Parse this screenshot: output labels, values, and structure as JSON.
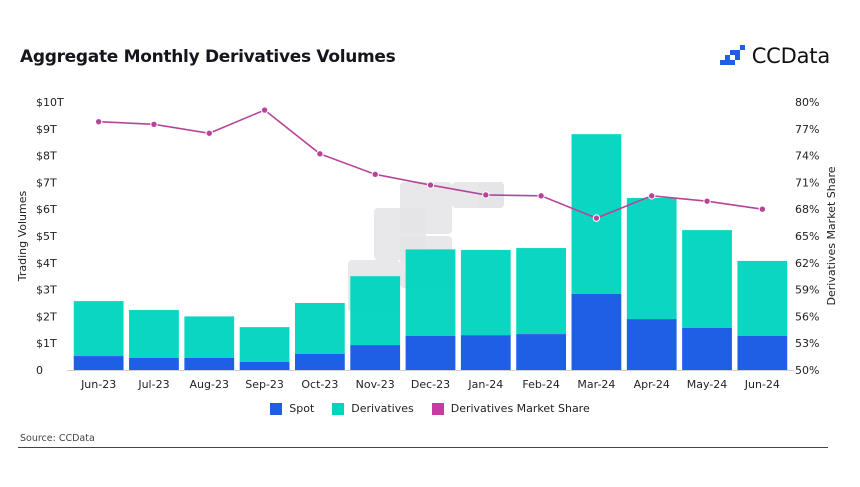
{
  "header": {
    "title": "Aggregate Monthly Derivatives Volumes",
    "brand": "CCData"
  },
  "footer": {
    "source": "Source: CCData"
  },
  "colors": {
    "spot": "#1f5fe6",
    "derivatives": "#00d4be",
    "market_share": "#b8449a",
    "watermark": "#e4e4e8"
  },
  "chart_data": {
    "type": "bar",
    "stacked": true,
    "title": "Aggregate Monthly Derivatives Volumes",
    "xlabel": "",
    "ylabel": "Trading Volumes",
    "y2label": "Derivatives Market Share",
    "categories": [
      "Jun-23",
      "Jul-23",
      "Aug-23",
      "Sep-23",
      "Oct-23",
      "Nov-23",
      "Dec-23",
      "Jan-24",
      "Feb-24",
      "Mar-24",
      "Apr-24",
      "May-24",
      "Jun-24"
    ],
    "series": [
      {
        "name": "Spot",
        "type": "bar",
        "unit": "USD trillions",
        "values": [
          0.52,
          0.45,
          0.45,
          0.3,
          0.6,
          0.93,
          1.27,
          1.3,
          1.34,
          2.84,
          1.9,
          1.57,
          1.27
        ]
      },
      {
        "name": "Derivatives",
        "type": "bar",
        "unit": "USD trillions",
        "values": [
          2.05,
          1.79,
          1.55,
          1.3,
          1.9,
          2.57,
          3.23,
          3.18,
          3.21,
          5.96,
          4.52,
          3.65,
          2.8
        ]
      },
      {
        "name": "Derivatives Market Share",
        "type": "line",
        "axis": "right",
        "unit": "percent",
        "values": [
          77.8,
          77.5,
          76.5,
          79.1,
          74.2,
          71.9,
          70.7,
          69.6,
          69.5,
          67.0,
          69.5,
          68.9,
          68.0
        ]
      }
    ],
    "ylim": [
      0,
      10
    ],
    "y2lim": [
      50,
      80
    ],
    "yticks": [
      "0",
      "$1T",
      "$2T",
      "$3T",
      "$4T",
      "$5T",
      "$6T",
      "$7T",
      "$8T",
      "$9T",
      "$10T"
    ],
    "y2ticks": [
      "50%",
      "53%",
      "56%",
      "59%",
      "62%",
      "65%",
      "68%",
      "71%",
      "74%",
      "77%",
      "80%"
    ],
    "legend": [
      "Spot",
      "Derivatives",
      "Derivatives Market Share"
    ],
    "legend_position": "bottom-center",
    "grid": false
  }
}
